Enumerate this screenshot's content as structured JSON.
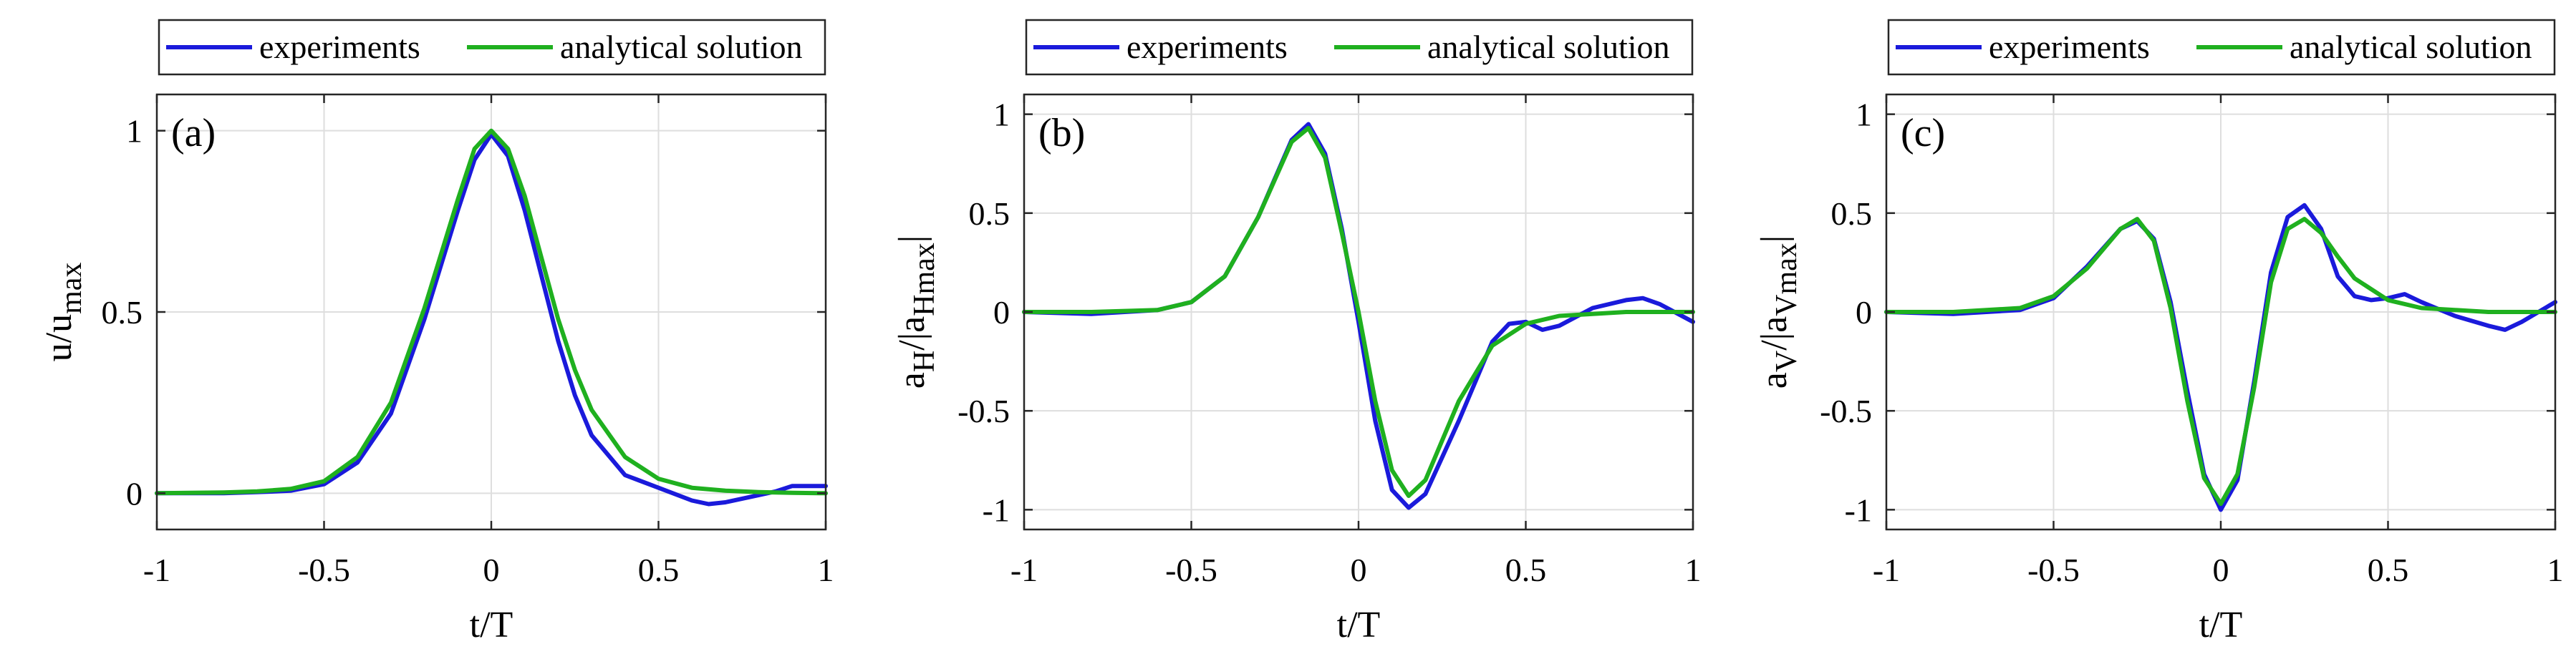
{
  "chart_data": [
    {
      "type": "line",
      "panel_label": "(a)",
      "xlabel": "t/T",
      "ylabel": {
        "main": "u/u",
        "sub": "max",
        "suffix": ""
      },
      "xlim": [
        -1,
        1
      ],
      "ylim": [
        -0.1,
        1.1
      ],
      "xticks": [
        -1,
        -0.5,
        0,
        0.5,
        1
      ],
      "xtick_labels": [
        "-1",
        "-0.5",
        "0",
        "0.5",
        "1"
      ],
      "yticks": [
        0,
        0.5,
        1
      ],
      "ytick_labels": [
        "0",
        "0.5",
        "1"
      ],
      "grid": true,
      "legend": {
        "placement": "top-outside",
        "entries": [
          "experiments",
          "analytical solution"
        ]
      },
      "series": [
        {
          "name": "experiments",
          "color": "#1a1adb",
          "x": [
            -1,
            -0.8,
            -0.7,
            -0.6,
            -0.5,
            -0.4,
            -0.3,
            -0.2,
            -0.1,
            -0.05,
            0,
            0.05,
            0.1,
            0.15,
            0.2,
            0.25,
            0.3,
            0.4,
            0.5,
            0.6,
            0.65,
            0.7,
            0.8,
            0.85,
            0.9,
            0.95,
            1
          ],
          "y": [
            0,
            0,
            0.003,
            0.007,
            0.025,
            0.085,
            0.22,
            0.48,
            0.78,
            0.92,
            0.99,
            0.93,
            0.78,
            0.6,
            0.42,
            0.27,
            0.16,
            0.05,
            0.015,
            -0.02,
            -0.03,
            -0.025,
            -0.005,
            0.005,
            0.02,
            0.02,
            0.02
          ]
        },
        {
          "name": "analytical solution",
          "color": "#1fb01f",
          "x": [
            -1,
            -0.8,
            -0.7,
            -0.6,
            -0.5,
            -0.4,
            -0.3,
            -0.2,
            -0.1,
            -0.05,
            0,
            0.05,
            0.1,
            0.15,
            0.2,
            0.25,
            0.3,
            0.4,
            0.5,
            0.6,
            0.7,
            0.8,
            0.9,
            1
          ],
          "y": [
            0,
            0.002,
            0.005,
            0.012,
            0.033,
            0.1,
            0.25,
            0.51,
            0.81,
            0.95,
            1,
            0.95,
            0.82,
            0.65,
            0.48,
            0.34,
            0.23,
            0.1,
            0.04,
            0.015,
            0.007,
            0.003,
            0.001,
            0
          ]
        }
      ]
    },
    {
      "type": "line",
      "panel_label": "(b)",
      "xlabel": "t/T",
      "ylabel": {
        "main": "a",
        "sub": "H",
        "suffix": "/|a",
        "sub2": "Hmax",
        "suffix2": "|"
      },
      "xlim": [
        -1,
        1
      ],
      "ylim": [
        -1.1,
        1.1
      ],
      "xticks": [
        -1,
        -0.5,
        0,
        0.5,
        1
      ],
      "xtick_labels": [
        "-1",
        "-0.5",
        "0",
        "0.5",
        "1"
      ],
      "yticks": [
        -1,
        -0.5,
        0,
        0.5,
        1
      ],
      "ytick_labels": [
        "-1",
        "-0.5",
        "0",
        "0.5",
        "1"
      ],
      "grid": true,
      "legend": {
        "placement": "top-outside",
        "entries": [
          "experiments",
          "analytical solution"
        ]
      },
      "series": [
        {
          "name": "experiments",
          "color": "#1a1adb",
          "x": [
            -1,
            -0.8,
            -0.6,
            -0.5,
            -0.4,
            -0.3,
            -0.2,
            -0.15,
            -0.1,
            -0.05,
            0,
            0.05,
            0.1,
            0.15,
            0.2,
            0.3,
            0.4,
            0.45,
            0.5,
            0.55,
            0.6,
            0.7,
            0.8,
            0.85,
            0.9,
            1
          ],
          "y": [
            0,
            -0.01,
            0.01,
            0.05,
            0.18,
            0.48,
            0.87,
            0.95,
            0.8,
            0.42,
            -0.05,
            -0.55,
            -0.9,
            -0.99,
            -0.92,
            -0.55,
            -0.15,
            -0.06,
            -0.05,
            -0.09,
            -0.07,
            0.02,
            0.06,
            0.07,
            0.04,
            -0.05
          ]
        },
        {
          "name": "analytical solution",
          "color": "#1fb01f",
          "x": [
            -1,
            -0.8,
            -0.6,
            -0.5,
            -0.4,
            -0.3,
            -0.2,
            -0.15,
            -0.1,
            -0.05,
            0,
            0.05,
            0.1,
            0.15,
            0.2,
            0.3,
            0.4,
            0.5,
            0.6,
            0.7,
            0.8,
            0.9,
            1
          ],
          "y": [
            0,
            0,
            0.01,
            0.05,
            0.18,
            0.48,
            0.86,
            0.93,
            0.78,
            0.4,
            0,
            -0.45,
            -0.8,
            -0.93,
            -0.85,
            -0.45,
            -0.17,
            -0.06,
            -0.02,
            -0.01,
            0,
            0,
            0
          ]
        }
      ]
    },
    {
      "type": "line",
      "panel_label": "(c)",
      "xlabel": "t/T",
      "ylabel": {
        "main": "a",
        "sub": "V",
        "suffix": "/|a",
        "sub2": "Vmax",
        "suffix2": "|"
      },
      "xlim": [
        -1,
        1
      ],
      "ylim": [
        -1.1,
        1.1
      ],
      "xticks": [
        -1,
        -0.5,
        0,
        0.5,
        1
      ],
      "xtick_labels": [
        "-1",
        "-0.5",
        "0",
        "0.5",
        "1"
      ],
      "yticks": [
        -1,
        -0.5,
        0,
        0.5,
        1
      ],
      "ytick_labels": [
        "-1",
        "-0.5",
        "0",
        "0.5",
        "1"
      ],
      "grid": true,
      "legend": {
        "placement": "top-outside",
        "entries": [
          "experiments",
          "analytical solution"
        ]
      },
      "series": [
        {
          "name": "experiments",
          "color": "#1a1adb",
          "x": [
            -1,
            -0.8,
            -0.6,
            -0.5,
            -0.4,
            -0.3,
            -0.25,
            -0.2,
            -0.15,
            -0.1,
            -0.05,
            0,
            0.05,
            0.1,
            0.15,
            0.2,
            0.25,
            0.3,
            0.35,
            0.4,
            0.45,
            0.5,
            0.55,
            0.6,
            0.7,
            0.8,
            0.85,
            0.9,
            1
          ],
          "y": [
            0,
            -0.01,
            0.01,
            0.07,
            0.23,
            0.42,
            0.46,
            0.37,
            0.05,
            -0.4,
            -0.82,
            -1,
            -0.85,
            -0.35,
            0.2,
            0.48,
            0.54,
            0.42,
            0.18,
            0.08,
            0.06,
            0.07,
            0.09,
            0.05,
            -0.02,
            -0.07,
            -0.09,
            -0.05,
            0.05
          ]
        },
        {
          "name": "analytical solution",
          "color": "#1fb01f",
          "x": [
            -1,
            -0.8,
            -0.6,
            -0.5,
            -0.4,
            -0.3,
            -0.25,
            -0.2,
            -0.15,
            -0.1,
            -0.05,
            0,
            0.05,
            0.1,
            0.15,
            0.2,
            0.25,
            0.3,
            0.35,
            0.4,
            0.5,
            0.6,
            0.7,
            0.8,
            0.9,
            1
          ],
          "y": [
            0,
            0,
            0.02,
            0.08,
            0.22,
            0.42,
            0.47,
            0.36,
            0.02,
            -0.45,
            -0.84,
            -0.97,
            -0.82,
            -0.38,
            0.15,
            0.42,
            0.47,
            0.4,
            0.28,
            0.17,
            0.06,
            0.02,
            0.01,
            0,
            0,
            0
          ]
        }
      ]
    }
  ]
}
